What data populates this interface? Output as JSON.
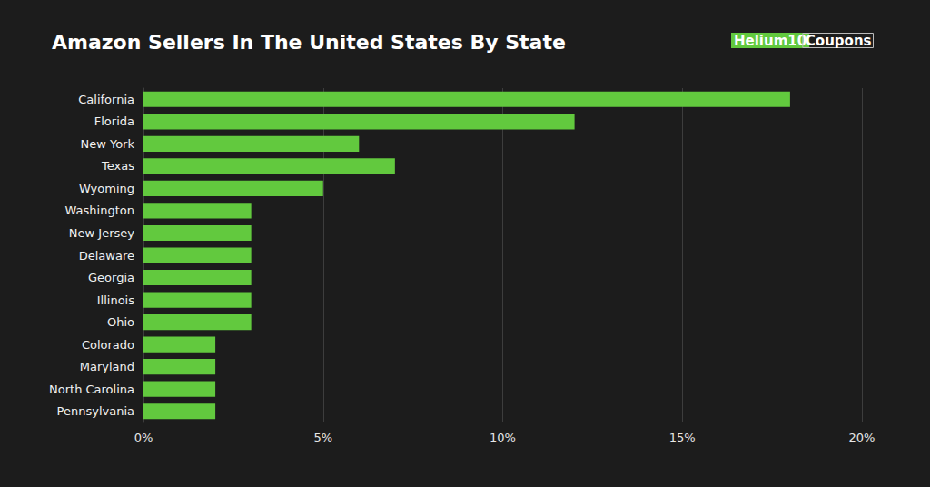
{
  "chart_data": {
    "type": "bar",
    "title": "Amazon Sellers In The United States By State",
    "annotations": [
      "Helium10",
      "Coupons"
    ],
    "orientation": "horizontal",
    "categories": [
      "California",
      "Florida",
      "New York",
      "Texas",
      "Wyoming",
      "Washington",
      "New Jersey",
      "Delaware",
      "Georgia",
      "Illinois",
      "Ohio",
      "Colorado",
      "Maryland",
      "North Carolina",
      "Pennsylvania"
    ],
    "values": [
      18,
      12,
      6,
      7,
      5,
      3,
      3,
      3,
      3,
      3,
      3,
      2,
      2,
      2,
      2
    ],
    "color": "#62c93e",
    "xlim": [
      0,
      20
    ],
    "xticks": [
      {
        "value": 0,
        "label": "0%"
      },
      {
        "value": 5,
        "label": "5%"
      },
      {
        "value": 10,
        "label": "10%"
      },
      {
        "value": 15,
        "label": "15%"
      },
      {
        "value": 20,
        "label": "20%"
      }
    ],
    "grid": true
  }
}
